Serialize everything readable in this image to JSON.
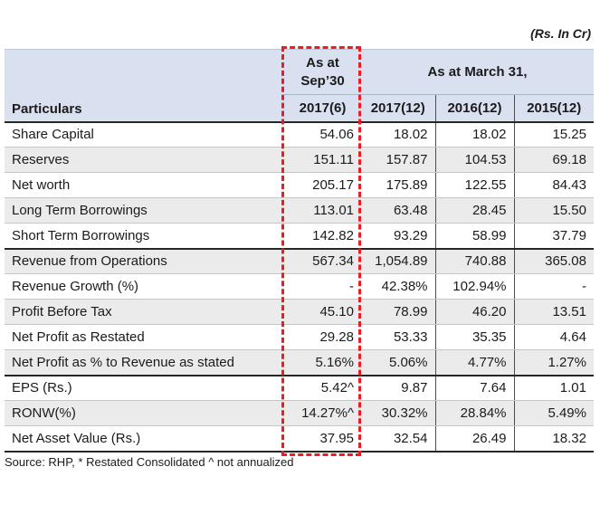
{
  "meta": {
    "unit_label": "(Rs. In Cr)",
    "source_note": "Source: RHP, * Restated Consolidated  ^ not annualized"
  },
  "table": {
    "header": {
      "particulars": "Particulars",
      "highlight_group": "As at Sep’30",
      "highlight_sub": "2017(6)",
      "group": "As at March 31,",
      "sub": [
        "2017(12)",
        "2016(12)",
        "2015(12)"
      ]
    },
    "rows": [
      {
        "label": "Share Capital",
        "values": [
          "54.06",
          "18.02",
          "18.02",
          "15.25"
        ]
      },
      {
        "label": "Reserves",
        "values": [
          "151.11",
          "157.87",
          "104.53",
          "69.18"
        ]
      },
      {
        "label": "Net worth",
        "values": [
          "205.17",
          "175.89",
          "122.55",
          "84.43"
        ]
      },
      {
        "label": "Long Term Borrowings",
        "values": [
          "113.01",
          "63.48",
          "28.45",
          "15.50"
        ]
      },
      {
        "label": "Short Term Borrowings",
        "values": [
          "142.82",
          "93.29",
          "58.99",
          "37.79"
        ]
      },
      {
        "label": "Revenue from Operations",
        "values": [
          "567.34",
          "1,054.89",
          "740.88",
          "365.08"
        ]
      },
      {
        "label": "Revenue Growth (%)",
        "values": [
          "-",
          "42.38%",
          "102.94%",
          "-"
        ]
      },
      {
        "label": "Profit Before Tax",
        "values": [
          "45.10",
          "78.99",
          "46.20",
          "13.51"
        ]
      },
      {
        "label": "Net Profit as Restated",
        "values": [
          "29.28",
          "53.33",
          "35.35",
          "4.64"
        ]
      },
      {
        "label": "Net Profit as % to Revenue as stated",
        "values": [
          "5.16%",
          "5.06%",
          "4.77%",
          "1.27%"
        ]
      },
      {
        "label": "EPS (Rs.)",
        "values": [
          "5.42^",
          "9.87",
          "7.64",
          "1.01"
        ]
      },
      {
        "label": "RONW(%)",
        "values": [
          "14.27%^",
          "30.32%",
          "28.84%",
          "5.49%"
        ]
      },
      {
        "label": "Net Asset Value (Rs.)",
        "values": [
          "37.95",
          "32.54",
          "26.49",
          "18.32"
        ]
      }
    ]
  },
  "colors": {
    "highlight_border": "#ed1c24",
    "header_bg": "#d9e1f0",
    "stripe_bg": "#ebebeb",
    "dark_line": "#262626"
  }
}
